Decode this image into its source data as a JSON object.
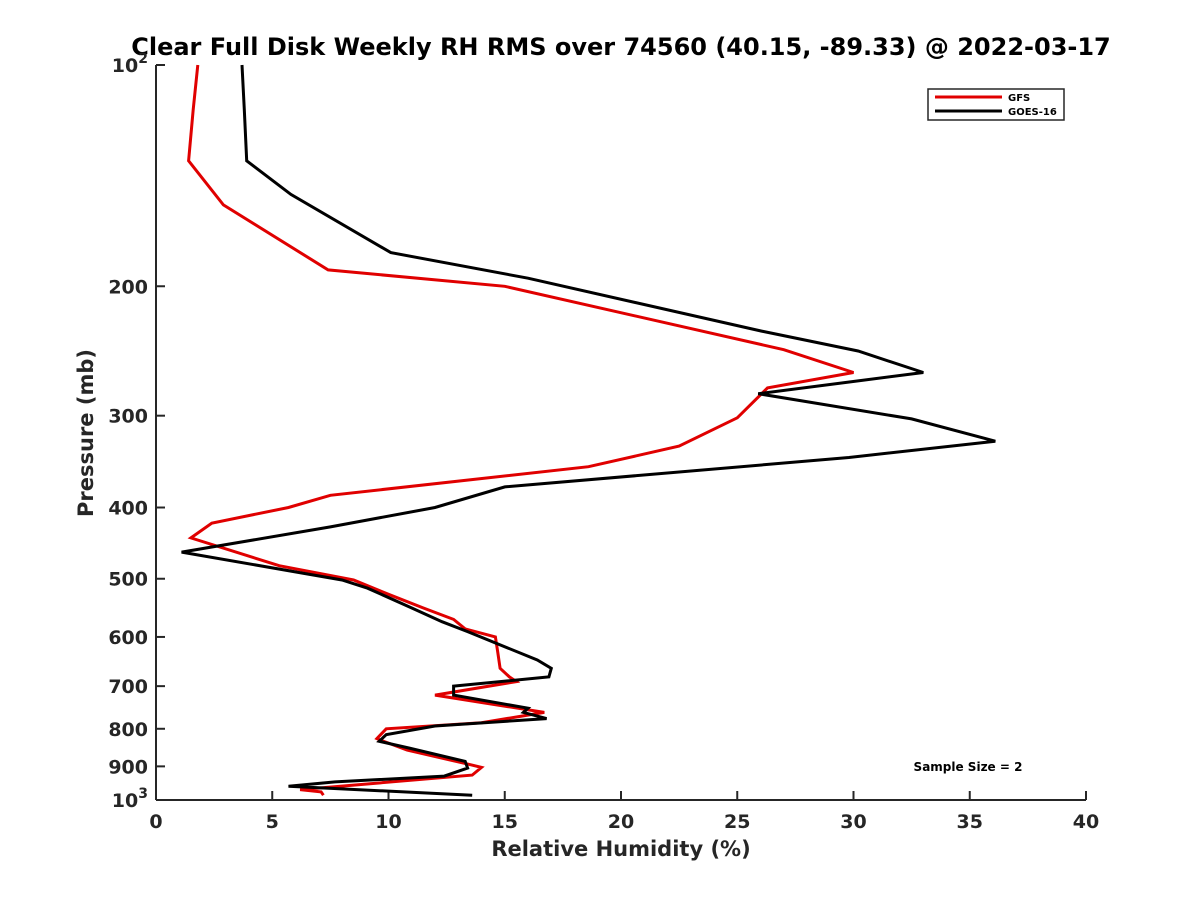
{
  "chart_data": {
    "type": "line",
    "title": "Clear Full Disk Weekly RH RMS over 74560 (40.15, -89.33) @ 2022-03-17",
    "xlabel": "Relative Humidity (%)",
    "ylabel": "Pressure (mb)",
    "xlim": [
      0,
      40
    ],
    "ylim": [
      100,
      1000
    ],
    "y_scale": "log",
    "y_reversed": true,
    "x_ticks": [
      "0",
      "5",
      "10",
      "15",
      "20",
      "25",
      "30",
      "35",
      "40"
    ],
    "y_ticks": [
      {
        "value": 100,
        "base": "10",
        "exp": "2"
      },
      {
        "value": 200,
        "label": "200"
      },
      {
        "value": 300,
        "label": "300"
      },
      {
        "value": 400,
        "label": "400"
      },
      {
        "value": 500,
        "label": "500"
      },
      {
        "value": 600,
        "label": "600"
      },
      {
        "value": 700,
        "label": "700"
      },
      {
        "value": 800,
        "label": "800"
      },
      {
        "value": 900,
        "label": "900"
      },
      {
        "value": 1000,
        "base": "10",
        "exp": "3"
      }
    ],
    "legend_position": "top-right",
    "annotation": "Sample Size = 2",
    "series": [
      {
        "name": "GFS",
        "color": "#e00000",
        "points": [
          [
            1.8,
            100
          ],
          [
            1.6,
            115
          ],
          [
            1.4,
            135
          ],
          [
            2.9,
            155
          ],
          [
            7.4,
            190
          ],
          [
            15.0,
            200
          ],
          [
            27.0,
            244
          ],
          [
            30.0,
            262
          ],
          [
            26.3,
            275
          ],
          [
            25.0,
            302
          ],
          [
            22.5,
            330
          ],
          [
            18.6,
            352
          ],
          [
            7.5,
            385
          ],
          [
            5.7,
            400
          ],
          [
            2.4,
            420
          ],
          [
            1.5,
            440
          ],
          [
            5.3,
            480
          ],
          [
            8.5,
            502
          ],
          [
            10.0,
            525
          ],
          [
            11.5,
            548
          ],
          [
            12.8,
            568
          ],
          [
            13.3,
            585
          ],
          [
            14.6,
            600
          ],
          [
            14.7,
            630
          ],
          [
            14.8,
            662
          ],
          [
            15.2,
            680
          ],
          [
            15.5,
            690
          ],
          [
            12.0,
            720
          ],
          [
            16.7,
            760
          ],
          [
            15.6,
            770
          ],
          [
            14.0,
            785
          ],
          [
            9.9,
            800
          ],
          [
            9.5,
            825
          ],
          [
            9.7,
            830
          ],
          [
            10.8,
            855
          ],
          [
            13.5,
            895
          ],
          [
            14.0,
            903
          ],
          [
            13.6,
            925
          ],
          [
            6.2,
            968
          ],
          [
            7.1,
            975
          ],
          [
            7.2,
            985
          ]
        ]
      },
      {
        "name": "GOES-16",
        "color": "#000000",
        "points": [
          [
            3.7,
            100
          ],
          [
            3.8,
            115
          ],
          [
            3.9,
            135
          ],
          [
            5.8,
            150
          ],
          [
            10.1,
            180
          ],
          [
            16.0,
            195
          ],
          [
            26.0,
            230
          ],
          [
            30.2,
            245
          ],
          [
            33.0,
            262
          ],
          [
            25.9,
            280
          ],
          [
            32.5,
            303
          ],
          [
            36.1,
            325
          ],
          [
            29.8,
            342
          ],
          [
            15.0,
            375
          ],
          [
            12.0,
            400
          ],
          [
            7.5,
            425
          ],
          [
            1.1,
            460
          ],
          [
            8.0,
            502
          ],
          [
            9.1,
            515
          ],
          [
            11.0,
            548
          ],
          [
            12.3,
            572
          ],
          [
            13.4,
            590
          ],
          [
            16.4,
            645
          ],
          [
            17.0,
            662
          ],
          [
            16.9,
            680
          ],
          [
            12.8,
            700
          ],
          [
            12.8,
            720
          ],
          [
            16.0,
            750
          ],
          [
            15.8,
            760
          ],
          [
            16.8,
            775
          ],
          [
            12.0,
            793
          ],
          [
            9.9,
            815
          ],
          [
            9.6,
            832
          ],
          [
            10.9,
            850
          ],
          [
            13.3,
            886
          ],
          [
            13.4,
            905
          ],
          [
            12.4,
            928
          ],
          [
            7.7,
            945
          ],
          [
            5.7,
            958
          ],
          [
            13.6,
            985
          ]
        ]
      }
    ]
  }
}
